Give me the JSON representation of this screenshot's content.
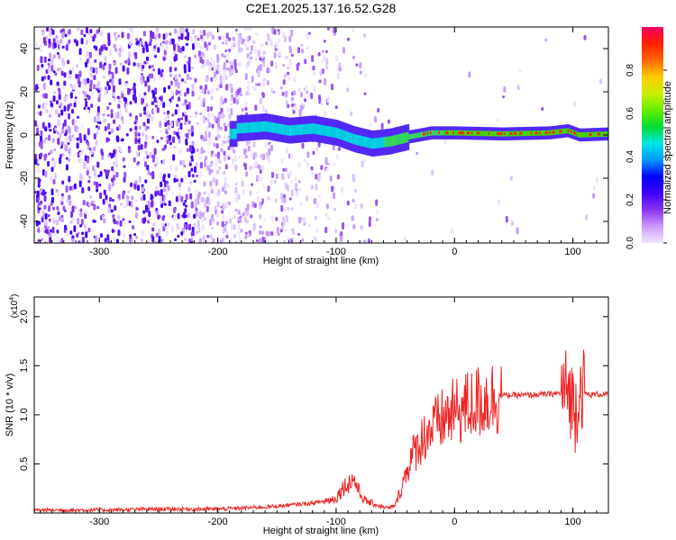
{
  "title": "C2E1.2025.137.16.52.G28",
  "chart_data": [
    {
      "type": "heatmap",
      "xlabel": "Height of straight line (km)",
      "ylabel": "Frequency (Hz)",
      "xlim": [
        -355,
        130
      ],
      "ylim": [
        -50,
        50
      ],
      "xticks": [
        -300,
        -200,
        -100,
        0,
        100
      ],
      "yticks": [
        -40,
        -20,
        0,
        20,
        40
      ],
      "colorbar": {
        "label": "Normalized spectral amplitude",
        "range": [
          0,
          1
        ],
        "ticks": [
          "0.0",
          "0.2",
          "0.4",
          "0.6",
          "0.8"
        ],
        "colormap": [
          "#f0e6ff",
          "#cc99ff",
          "#8833ee",
          "#4000ff",
          "#0000ff",
          "#0099ff",
          "#00e5e5",
          "#00dd33",
          "#66ee00",
          "#ccee00",
          "#ffcc00",
          "#ff6600",
          "#ff2200",
          "#ff0066"
        ]
      },
      "signal_track": [
        {
          "x": -185,
          "y": 3
        },
        {
          "x": -160,
          "y": 4
        },
        {
          "x": -140,
          "y": 2
        },
        {
          "x": -120,
          "y": 3
        },
        {
          "x": -100,
          "y": 1
        },
        {
          "x": -85,
          "y": -2
        },
        {
          "x": -70,
          "y": -4
        },
        {
          "x": -55,
          "y": -3
        },
        {
          "x": -40,
          "y": -1
        },
        {
          "x": -20,
          "y": 1
        },
        {
          "x": 0,
          "y": 1
        },
        {
          "x": 40,
          "y": 0.5
        },
        {
          "x": 80,
          "y": 1
        },
        {
          "x": 95,
          "y": 2
        },
        {
          "x": 105,
          "y": 0
        },
        {
          "x": 130,
          "y": 0.5
        }
      ]
    },
    {
      "type": "line",
      "xlabel": "Height of straight line (km)",
      "ylabel": "SNR (10 * v/v)",
      "scale_label": "(x10",
      "scale_exp": "4",
      "color": "#ee2222",
      "xlim": [
        -355,
        130
      ],
      "ylim": [
        0,
        2.2
      ],
      "xticks": [
        -300,
        -200,
        -100,
        0,
        100
      ],
      "yticks": [
        "0.5",
        "1.0",
        "1.5",
        "2.0"
      ],
      "series": [
        {
          "x": [
            -355,
            -300,
            -250,
            -200,
            -180,
            -160,
            -150,
            -140,
            -130,
            -120,
            -110,
            -100,
            -95,
            -90,
            -85,
            -80,
            -75,
            -70,
            -65,
            -60,
            -55,
            -50,
            -45,
            -40,
            -35,
            -30,
            -25,
            -20,
            -15,
            -10,
            -5,
            0,
            10,
            20,
            30,
            40,
            60,
            80,
            90,
            95,
            98,
            100,
            102,
            105,
            108,
            110,
            115,
            120,
            130
          ],
          "values": [
            0.03,
            0.03,
            0.04,
            0.04,
            0.05,
            0.06,
            0.07,
            0.08,
            0.09,
            0.1,
            0.12,
            0.15,
            0.25,
            0.3,
            0.35,
            0.2,
            0.12,
            0.1,
            0.08,
            0.06,
            0.05,
            0.08,
            0.25,
            0.45,
            0.6,
            0.7,
            0.8,
            0.85,
            0.9,
            0.95,
            1.0,
            1.02,
            1.08,
            1.13,
            1.17,
            1.2,
            1.2,
            1.21,
            1.22,
            1.25,
            1.2,
            1.1,
            1.05,
            1.25,
            1.3,
            1.22,
            1.2,
            1.21,
            1.21
          ]
        }
      ]
    }
  ]
}
